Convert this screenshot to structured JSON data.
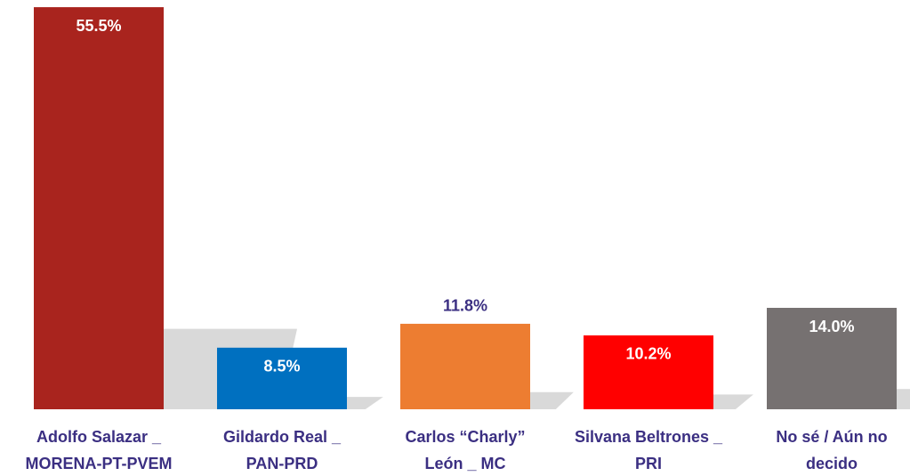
{
  "chart_data": {
    "type": "bar",
    "categories": [
      [
        "Adolfo Salazar _",
        "MORENA-PT-PVEM"
      ],
      [
        "Gildardo Real _",
        "PAN-PRD"
      ],
      [
        "Carlos “Charly”",
        "León _ MC"
      ],
      [
        "Silvana Beltrones _",
        "PRI"
      ],
      [
        "No sé / Aún no",
        "decido"
      ]
    ],
    "values": [
      55.5,
      8.5,
      11.8,
      10.2,
      14.0
    ],
    "value_labels": [
      "55.5%",
      "8.5%",
      "11.8%",
      "10.2%",
      "14.0%"
    ],
    "colors": [
      "#a9241e",
      "#0070c0",
      "#ed7d31",
      "#ff0000",
      "#767171"
    ],
    "label_positions": [
      "inside",
      "inside",
      "outside",
      "inside",
      "inside"
    ],
    "ylim": [
      0,
      56
    ]
  }
}
